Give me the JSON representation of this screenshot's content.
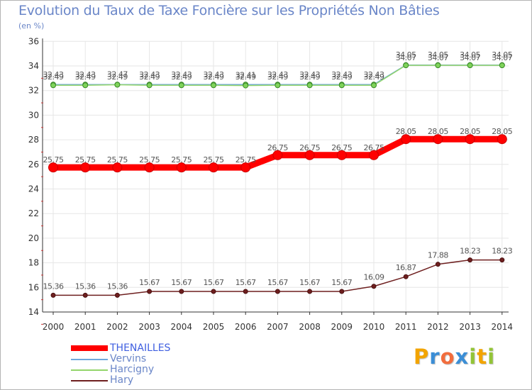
{
  "title": "Evolution du Taux de Taxe Foncière sur les Propriétés Non Bâties",
  "unit": "(en %)",
  "colors": {
    "THENAILLES": "#ff0000",
    "Vervins": "#6fa8dc",
    "Harcigny": "#93d56b",
    "Hary": "#6e1f1f",
    "text": "#6a86c8",
    "axis": "#333333",
    "grid": "#e6e6e6"
  },
  "logo": {
    "letters": [
      "P",
      "r",
      "o",
      "x",
      "i",
      "t",
      "i"
    ],
    "colors": [
      "#f2a400",
      "#3b8ed6",
      "#f26d3d",
      "#3b8ed6",
      "#93c437",
      "#f2a400",
      "#93c437"
    ]
  },
  "chart_data": {
    "type": "line",
    "title": "Evolution du Taux de Taxe Foncière sur les Propriétés Non Bâties",
    "ylabel": "(en %)",
    "xlabel": "",
    "ylim": [
      14,
      36
    ],
    "yticks": [
      14,
      16,
      18,
      20,
      22,
      24,
      26,
      28,
      30,
      32,
      34,
      36
    ],
    "categories": [
      "2000",
      "2001",
      "2002",
      "2003",
      "2004",
      "2005",
      "2006",
      "2007",
      "2008",
      "2009",
      "2010",
      "2011",
      "2012",
      "2013",
      "2014"
    ],
    "grid": true,
    "legend": "bottom-left",
    "series": [
      {
        "name": "THENAILLES",
        "values": [
          25.75,
          25.75,
          25.75,
          25.75,
          25.75,
          25.75,
          25.75,
          26.75,
          26.75,
          26.75,
          26.75,
          28.05,
          28.05,
          28.05,
          28.05
        ],
        "labels": [
          "25.75",
          "25.75",
          "25.75",
          "25.75",
          "25.75",
          "25.75",
          "25.75",
          "26.75",
          "26.75",
          "26.75",
          "26.75",
          "28.05",
          "28.05",
          "28.05",
          "28.05"
        ]
      },
      {
        "name": "Vervins",
        "values": [
          32.49,
          32.49,
          32.49,
          32.49,
          32.49,
          32.49,
          32.49,
          32.49,
          32.49,
          32.49,
          32.49,
          34.07,
          34.07,
          34.07,
          34.07
        ],
        "labels": [
          "32.49",
          "32.49",
          "32.49",
          "32.49",
          "32.49",
          "32.49",
          "32.49",
          "32.49",
          "32.49",
          "32.49",
          "32.49",
          "34.07",
          "34.07",
          "34.07",
          "34.07"
        ]
      },
      {
        "name": "Harcigny",
        "values": [
          32.43,
          32.43,
          32.47,
          32.43,
          32.43,
          32.43,
          32.41,
          32.43,
          32.43,
          32.43,
          32.43,
          34.05,
          34.05,
          34.05,
          34.05
        ],
        "labels": [
          "32.43",
          "32.43",
          "32.47",
          "32.43",
          "32.43",
          "32.43",
          "32.41",
          "32.43",
          "32.43",
          "32.43",
          "32.43",
          "34.05",
          "34.05",
          "34.05",
          "34.05"
        ]
      },
      {
        "name": "Hary",
        "values": [
          15.36,
          15.36,
          15.36,
          15.67,
          15.67,
          15.67,
          15.67,
          15.67,
          15.67,
          15.67,
          16.09,
          16.87,
          17.88,
          18.23,
          18.23
        ],
        "labels": [
          "15.36",
          "15.36",
          "15.36",
          "15.67",
          "15.67",
          "15.67",
          "15.67",
          "15.67",
          "15.67",
          "15.67",
          "16.09",
          "16.87",
          "17.88",
          "18.23",
          "18.23"
        ]
      }
    ]
  }
}
